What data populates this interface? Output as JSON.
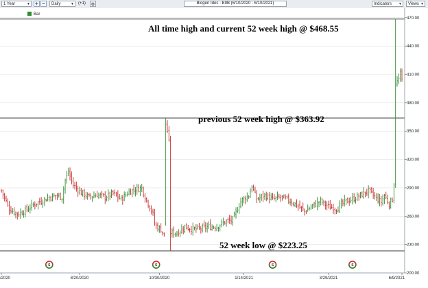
{
  "toolbar": {
    "period": "1 Year",
    "interval": "Daily",
    "offset": "(+1)",
    "chart_title": "Biogen Idec - BIIB (6/10/2020 - 6/10/2021)",
    "indicators_label": "Indicators",
    "views_label": "Views"
  },
  "legend": {
    "label": "Bar",
    "color": "#2e8b2e"
  },
  "annotations": {
    "ath": "All time high and current 52 week high @ $468.55",
    "prev": "previous 52 week high @ $363.92",
    "low": "52 week low @ $223.25"
  },
  "earnings_badge": "S",
  "colors": {
    "up": "#2e8b2e",
    "down": "#c62828",
    "line": "#222222",
    "grid": "#e3e3e3"
  },
  "chart_data": {
    "type": "bar",
    "title": "Biogen Idec - BIIB (6/10/2020 - 6/10/2021)",
    "ylim": [
      200,
      480
    ],
    "yticks": [
      "470.00",
      "440.00",
      "410.00",
      "380.00",
      "350.00",
      "320.00",
      "290.00",
      "260.00",
      "230.00",
      "200.00"
    ],
    "ytick_values": [
      470,
      440,
      410,
      380,
      350,
      320,
      290,
      260,
      230,
      200
    ],
    "xtick_labels": [
      "/2020",
      "8/20/2020",
      "10/30/2020",
      "1/14/2021",
      "3/29/2021",
      "6/9/2021"
    ],
    "xtick_positions": [
      0,
      49,
      99,
      152,
      205,
      251
    ],
    "n_bars": 252,
    "reference_lines": [
      468.55,
      363.92,
      223.25
    ],
    "earnings_markers": [
      30,
      97,
      170,
      220
    ],
    "close_path": [
      [
        0,
        287
      ],
      [
        5,
        268
      ],
      [
        10,
        262
      ],
      [
        15,
        266
      ],
      [
        20,
        272
      ],
      [
        25,
        276
      ],
      [
        30,
        280
      ],
      [
        35,
        282
      ],
      [
        38,
        280
      ],
      [
        40,
        298
      ],
      [
        42,
        307
      ],
      [
        45,
        293
      ],
      [
        50,
        285
      ],
      [
        55,
        280
      ],
      [
        60,
        283
      ],
      [
        65,
        280
      ],
      [
        70,
        284
      ],
      [
        75,
        278
      ],
      [
        80,
        286
      ],
      [
        85,
        289
      ],
      [
        88,
        290
      ],
      [
        90,
        280
      ],
      [
        93,
        270
      ],
      [
        95,
        262
      ],
      [
        96,
        252
      ],
      [
        98,
        248
      ],
      [
        100,
        246
      ],
      [
        102,
        240
      ],
      [
        103,
        357
      ],
      [
        104,
        350
      ],
      [
        105,
        338
      ],
      [
        106,
        243
      ],
      [
        110,
        242
      ],
      [
        115,
        249
      ],
      [
        120,
        246
      ],
      [
        125,
        247
      ],
      [
        130,
        249
      ],
      [
        135,
        249
      ],
      [
        140,
        254
      ],
      [
        145,
        256
      ],
      [
        150,
        276
      ],
      [
        155,
        282
      ],
      [
        157,
        292
      ],
      [
        160,
        278
      ],
      [
        165,
        282
      ],
      [
        170,
        278
      ],
      [
        175,
        280
      ],
      [
        180,
        277
      ],
      [
        185,
        272
      ],
      [
        190,
        265
      ],
      [
        195,
        271
      ],
      [
        200,
        276
      ],
      [
        205,
        270
      ],
      [
        210,
        268
      ],
      [
        215,
        275
      ],
      [
        220,
        278
      ],
      [
        225,
        282
      ],
      [
        230,
        287
      ],
      [
        235,
        279
      ],
      [
        238,
        275
      ],
      [
        240,
        282
      ],
      [
        243,
        273
      ],
      [
        245,
        278
      ],
      [
        246,
        294
      ],
      [
        247,
        398
      ],
      [
        248,
        402
      ],
      [
        249,
        405
      ],
      [
        250,
        410
      ],
      [
        251,
        404
      ]
    ]
  }
}
